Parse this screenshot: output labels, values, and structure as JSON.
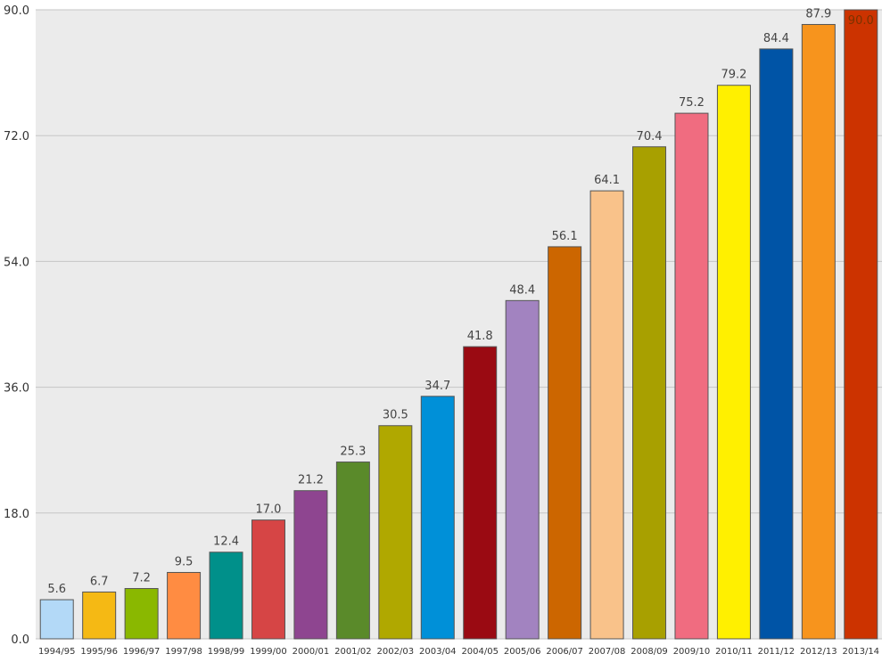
{
  "chart_data": {
    "type": "bar",
    "title": "",
    "xlabel": "",
    "ylabel": "",
    "categories": [
      "1994/95",
      "1995/96",
      "1996/97",
      "1997/98",
      "1998/99",
      "1999/00",
      "2000/01",
      "2001/02",
      "2002/03",
      "2003/04",
      "2004/05",
      "2005/06",
      "2006/07",
      "2007/08",
      "2008/09",
      "2009/10",
      "2010/11",
      "2011/12",
      "2012/13",
      "2013/14"
    ],
    "values": [
      5.6,
      6.7,
      7.2,
      9.5,
      12.4,
      17.0,
      21.2,
      25.3,
      30.5,
      34.7,
      41.8,
      48.4,
      56.1,
      64.1,
      70.4,
      75.2,
      79.2,
      84.4,
      87.9,
      90.0
    ],
    "value_labels": [
      "5.6",
      "6.7",
      "7.2",
      "9.5",
      "12.4",
      "17.0",
      "21.2",
      "25.3",
      "30.5",
      "34.7",
      "41.8",
      "48.4",
      "56.1",
      "64.1",
      "70.4",
      "75.2",
      "79.2",
      "84.4",
      "87.9",
      "90.0"
    ],
    "ylim": [
      0,
      90
    ],
    "yticks": [
      "0.0",
      "18.0",
      "36.0",
      "54.0",
      "72.0",
      "90.0"
    ],
    "grid": true,
    "legend": "none",
    "colors": [
      "#b3d9f7",
      "#f5b914",
      "#8ab800",
      "#ff8c42",
      "#00908a",
      "#d64545",
      "#8e4590",
      "#5a8a2a",
      "#b0a800",
      "#0090d8",
      "#9a0a12",
      "#a283c0",
      "#cc6600",
      "#f9c28a",
      "#a8a000",
      "#f06c80",
      "#fff000",
      "#0054a6",
      "#f7941d",
      "#cc3300"
    ]
  }
}
